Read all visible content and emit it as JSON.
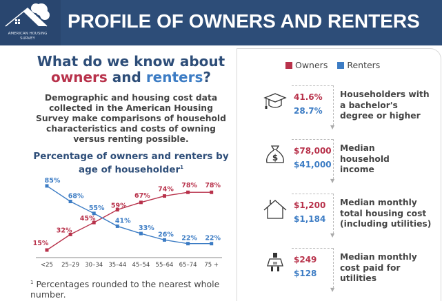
{
  "header": {
    "title": "PROFILE OF OWNERS AND RENTERS",
    "logo_text": "AMERICAN HOUSING SURVEY"
  },
  "intro": {
    "question_line1": "What do we know about",
    "owners": "owners",
    "and": "and",
    "renters": "renters",
    "qmark": "?",
    "description": "Demographic and housing cost data collected in the American Housing Survey make comparisons of household characteristics and costs of owning versus renting possible."
  },
  "footnote": {
    "mark": "1",
    "text": "Percentages rounded to the nearest whole number."
  },
  "colors": {
    "owners": "#b8324b",
    "renters": "#3c7cc4",
    "header": "#2d4d78"
  },
  "legend": {
    "owners": "Owners",
    "renters": "Renters"
  },
  "stats": [
    {
      "icon": "graduation-cap-icon",
      "owners": "41.6%",
      "renters": "28.7%",
      "label": "Householders with a bachelor's degree or higher"
    },
    {
      "icon": "money-bag-icon",
      "owners": "$78,000",
      "renters": "$41,000",
      "label": "Median household income"
    },
    {
      "icon": "house-icon",
      "owners": "$1,200",
      "renters": "$1,184",
      "label": "Median monthly total housing cost (including utilities)"
    },
    {
      "icon": "plug-icon",
      "owners": "$249",
      "renters": "$128",
      "label": "Median monthly cost paid for utilities"
    }
  ],
  "chart_data": {
    "type": "line",
    "title": "Percentage of owners and renters by age of householder",
    "title_footnote": "1",
    "categories": [
      "<25",
      "25–29",
      "30–34",
      "35–44",
      "45–54",
      "55–64",
      "65–74",
      "75 +"
    ],
    "series": [
      {
        "name": "Owners",
        "color": "#b8324b",
        "values": [
          15,
          32,
          45,
          59,
          67,
          74,
          78,
          78
        ],
        "labels": [
          "15%",
          "32%",
          "45%",
          "59%",
          "67%",
          "74%",
          "78%",
          "78%"
        ]
      },
      {
        "name": "Renters",
        "color": "#3c7cc4",
        "values": [
          85,
          68,
          55,
          41,
          33,
          26,
          22,
          22
        ],
        "labels": [
          "85%",
          "68%",
          "55%",
          "41%",
          "33%",
          "26%",
          "22%",
          "22%"
        ]
      }
    ],
    "ylim": [
      0,
      100
    ],
    "grid": false,
    "legend": "top-right (shared panel legend)"
  }
}
